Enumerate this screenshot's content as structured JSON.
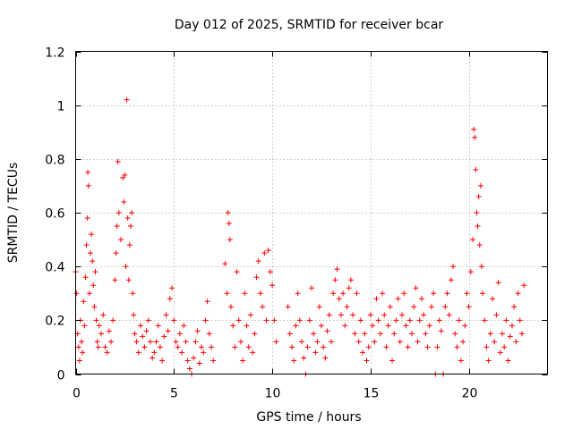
{
  "chart_data": {
    "type": "scatter",
    "title": "Day 012 of 2025, SRMTID for receiver bcar",
    "xlabel": "GPS time / hours",
    "ylabel": "SRMTID / TECUs",
    "xlim": [
      0,
      24
    ],
    "ylim": [
      0,
      1.2
    ],
    "xticks": [
      0,
      5,
      10,
      15,
      20
    ],
    "yticks": [
      0,
      0.2,
      0.4,
      0.6,
      0.8,
      1,
      1.2
    ],
    "xtick_labels": [
      "0",
      "5",
      "10",
      "15",
      "20"
    ],
    "ytick_labels": [
      "0",
      "0.2",
      "0.4",
      "0.6",
      "0.8",
      "1",
      "1.2"
    ],
    "grid": true,
    "marker": "+",
    "color": "#ff0000",
    "series": [
      {
        "name": "SRMTID",
        "points": [
          [
            0.0,
            0.38
          ],
          [
            0.05,
            0.3
          ],
          [
            0.1,
            0.15
          ],
          [
            0.15,
            0.1
          ],
          [
            0.2,
            0.05
          ],
          [
            0.25,
            0.2
          ],
          [
            0.3,
            0.12
          ],
          [
            0.35,
            0.08
          ],
          [
            0.4,
            0.27
          ],
          [
            0.45,
            0.18
          ],
          [
            0.5,
            0.36
          ],
          [
            0.55,
            0.48
          ],
          [
            0.6,
            0.58
          ],
          [
            0.62,
            0.75
          ],
          [
            0.65,
            0.7
          ],
          [
            0.7,
            0.3
          ],
          [
            0.75,
            0.45
          ],
          [
            0.8,
            0.52
          ],
          [
            0.85,
            0.42
          ],
          [
            0.9,
            0.33
          ],
          [
            0.95,
            0.25
          ],
          [
            1.0,
            0.38
          ],
          [
            1.05,
            0.2
          ],
          [
            1.1,
            0.12
          ],
          [
            1.15,
            0.1
          ],
          [
            1.2,
            0.18
          ],
          [
            1.3,
            0.15
          ],
          [
            1.4,
            0.22
          ],
          [
            1.5,
            0.1
          ],
          [
            1.6,
            0.08
          ],
          [
            1.7,
            0.16
          ],
          [
            1.8,
            0.12
          ],
          [
            1.9,
            0.2
          ],
          [
            2.0,
            0.35
          ],
          [
            2.05,
            0.45
          ],
          [
            2.1,
            0.55
          ],
          [
            2.15,
            0.79
          ],
          [
            2.2,
            0.6
          ],
          [
            2.3,
            0.5
          ],
          [
            2.4,
            0.73
          ],
          [
            2.45,
            0.64
          ],
          [
            2.5,
            0.74
          ],
          [
            2.55,
            0.4
          ],
          [
            2.6,
            1.02
          ],
          [
            2.65,
            0.58
          ],
          [
            2.7,
            0.35
          ],
          [
            2.75,
            0.48
          ],
          [
            2.8,
            0.55
          ],
          [
            2.85,
            0.6
          ],
          [
            2.9,
            0.3
          ],
          [
            2.95,
            0.22
          ],
          [
            3.0,
            0.15
          ],
          [
            3.1,
            0.12
          ],
          [
            3.2,
            0.08
          ],
          [
            3.3,
            0.18
          ],
          [
            3.4,
            0.14
          ],
          [
            3.5,
            0.1
          ],
          [
            3.6,
            0.16
          ],
          [
            3.7,
            0.2
          ],
          [
            3.8,
            0.12
          ],
          [
            3.9,
            0.06
          ],
          [
            4.0,
            0.08
          ],
          [
            4.1,
            0.12
          ],
          [
            4.2,
            0.18
          ],
          [
            4.3,
            0.1
          ],
          [
            4.4,
            0.05
          ],
          [
            4.5,
            0.14
          ],
          [
            4.6,
            0.22
          ],
          [
            4.7,
            0.16
          ],
          [
            4.8,
            0.28
          ],
          [
            4.9,
            0.32
          ],
          [
            5.0,
            0.2
          ],
          [
            5.1,
            0.12
          ],
          [
            5.2,
            0.1
          ],
          [
            5.3,
            0.15
          ],
          [
            5.4,
            0.08
          ],
          [
            5.5,
            0.18
          ],
          [
            5.6,
            0.12
          ],
          [
            5.7,
            0.05
          ],
          [
            5.8,
            0.02
          ],
          [
            5.9,
            0.0
          ],
          [
            6.0,
            0.06
          ],
          [
            6.1,
            0.12
          ],
          [
            6.2,
            0.16
          ],
          [
            6.3,
            0.04
          ],
          [
            6.4,
            0.1
          ],
          [
            6.5,
            0.08
          ],
          [
            6.6,
            0.2
          ],
          [
            6.7,
            0.27
          ],
          [
            6.8,
            0.15
          ],
          [
            6.9,
            0.1
          ],
          [
            7.0,
            0.05
          ],
          [
            7.6,
            0.41
          ],
          [
            7.7,
            0.3
          ],
          [
            7.75,
            0.6
          ],
          [
            7.8,
            0.56
          ],
          [
            7.85,
            0.5
          ],
          [
            7.9,
            0.25
          ],
          [
            8.0,
            0.18
          ],
          [
            8.1,
            0.1
          ],
          [
            8.2,
            0.38
          ],
          [
            8.3,
            0.2
          ],
          [
            8.4,
            0.12
          ],
          [
            8.5,
            0.05
          ],
          [
            8.6,
            0.3
          ],
          [
            8.7,
            0.18
          ],
          [
            8.8,
            0.1
          ],
          [
            8.9,
            0.22
          ],
          [
            9.0,
            0.08
          ],
          [
            9.1,
            0.15
          ],
          [
            9.2,
            0.36
          ],
          [
            9.3,
            0.42
          ],
          [
            9.4,
            0.3
          ],
          [
            9.5,
            0.25
          ],
          [
            9.6,
            0.45
          ],
          [
            9.7,
            0.2
          ],
          [
            9.8,
            0.46
          ],
          [
            9.9,
            0.38
          ],
          [
            10.0,
            0.33
          ],
          [
            10.1,
            0.2
          ],
          [
            10.2,
            0.12
          ],
          [
            10.8,
            0.25
          ],
          [
            10.9,
            0.15
          ],
          [
            11.0,
            0.1
          ],
          [
            11.1,
            0.05
          ],
          [
            11.2,
            0.18
          ],
          [
            11.3,
            0.3
          ],
          [
            11.4,
            0.2
          ],
          [
            11.5,
            0.12
          ],
          [
            11.6,
            0.06
          ],
          [
            11.7,
            0.0
          ],
          [
            11.8,
            0.1
          ],
          [
            11.9,
            0.2
          ],
          [
            12.0,
            0.32
          ],
          [
            12.1,
            0.15
          ],
          [
            12.2,
            0.08
          ],
          [
            12.3,
            0.12
          ],
          [
            12.4,
            0.25
          ],
          [
            12.5,
            0.18
          ],
          [
            12.6,
            0.1
          ],
          [
            12.7,
            0.06
          ],
          [
            12.8,
            0.16
          ],
          [
            12.9,
            0.22
          ],
          [
            13.0,
            0.12
          ],
          [
            13.1,
            0.3
          ],
          [
            13.2,
            0.35
          ],
          [
            13.3,
            0.39
          ],
          [
            13.4,
            0.28
          ],
          [
            13.5,
            0.22
          ],
          [
            13.6,
            0.3
          ],
          [
            13.7,
            0.18
          ],
          [
            13.8,
            0.25
          ],
          [
            13.9,
            0.32
          ],
          [
            14.0,
            0.35
          ],
          [
            14.1,
            0.22
          ],
          [
            14.2,
            0.15
          ],
          [
            14.3,
            0.3
          ],
          [
            14.4,
            0.12
          ],
          [
            14.5,
            0.2
          ],
          [
            14.6,
            0.08
          ],
          [
            14.7,
            0.15
          ],
          [
            14.8,
            0.05
          ],
          [
            14.9,
            0.1
          ],
          [
            15.0,
            0.22
          ],
          [
            15.1,
            0.18
          ],
          [
            15.2,
            0.12
          ],
          [
            15.3,
            0.28
          ],
          [
            15.4,
            0.2
          ],
          [
            15.5,
            0.15
          ],
          [
            15.6,
            0.3
          ],
          [
            15.7,
            0.22
          ],
          [
            15.8,
            0.1
          ],
          [
            15.9,
            0.18
          ],
          [
            16.0,
            0.25
          ],
          [
            16.1,
            0.05
          ],
          [
            16.2,
            0.15
          ],
          [
            16.3,
            0.2
          ],
          [
            16.4,
            0.28
          ],
          [
            16.5,
            0.12
          ],
          [
            16.6,
            0.22
          ],
          [
            16.7,
            0.3
          ],
          [
            16.8,
            0.18
          ],
          [
            16.9,
            0.1
          ],
          [
            17.0,
            0.2
          ],
          [
            17.1,
            0.15
          ],
          [
            17.2,
            0.25
          ],
          [
            17.3,
            0.32
          ],
          [
            17.4,
            0.12
          ],
          [
            17.5,
            0.2
          ],
          [
            17.6,
            0.28
          ],
          [
            17.7,
            0.22
          ],
          [
            17.8,
            0.15
          ],
          [
            17.9,
            0.1
          ],
          [
            18.0,
            0.18
          ],
          [
            18.1,
            0.25
          ],
          [
            18.2,
            0.3
          ],
          [
            18.3,
            0.0
          ],
          [
            18.4,
            0.1
          ],
          [
            18.5,
            0.2
          ],
          [
            18.6,
            0.16
          ],
          [
            18.7,
            0.0
          ],
          [
            18.8,
            0.25
          ],
          [
            18.9,
            0.3
          ],
          [
            19.0,
            0.22
          ],
          [
            19.1,
            0.35
          ],
          [
            19.2,
            0.4
          ],
          [
            19.3,
            0.15
          ],
          [
            19.4,
            0.1
          ],
          [
            19.5,
            0.2
          ],
          [
            19.6,
            0.05
          ],
          [
            19.7,
            0.12
          ],
          [
            19.8,
            0.18
          ],
          [
            19.9,
            0.3
          ],
          [
            20.0,
            0.25
          ],
          [
            20.1,
            0.38
          ],
          [
            20.2,
            0.5
          ],
          [
            20.25,
            0.91
          ],
          [
            20.3,
            0.88
          ],
          [
            20.35,
            0.76
          ],
          [
            20.4,
            0.6
          ],
          [
            20.45,
            0.55
          ],
          [
            20.5,
            0.66
          ],
          [
            20.55,
            0.48
          ],
          [
            20.6,
            0.7
          ],
          [
            20.65,
            0.4
          ],
          [
            20.7,
            0.3
          ],
          [
            20.8,
            0.2
          ],
          [
            20.9,
            0.1
          ],
          [
            21.0,
            0.05
          ],
          [
            21.1,
            0.15
          ],
          [
            21.2,
            0.28
          ],
          [
            21.3,
            0.12
          ],
          [
            21.4,
            0.22
          ],
          [
            21.5,
            0.34
          ],
          [
            21.6,
            0.08
          ],
          [
            21.7,
            0.15
          ],
          [
            21.8,
            0.1
          ],
          [
            21.9,
            0.2
          ],
          [
            22.0,
            0.05
          ],
          [
            22.1,
            0.14
          ],
          [
            22.2,
            0.18
          ],
          [
            22.3,
            0.25
          ],
          [
            22.4,
            0.12
          ],
          [
            22.5,
            0.3
          ],
          [
            22.6,
            0.2
          ],
          [
            22.7,
            0.15
          ],
          [
            22.8,
            0.33
          ]
        ]
      }
    ]
  }
}
